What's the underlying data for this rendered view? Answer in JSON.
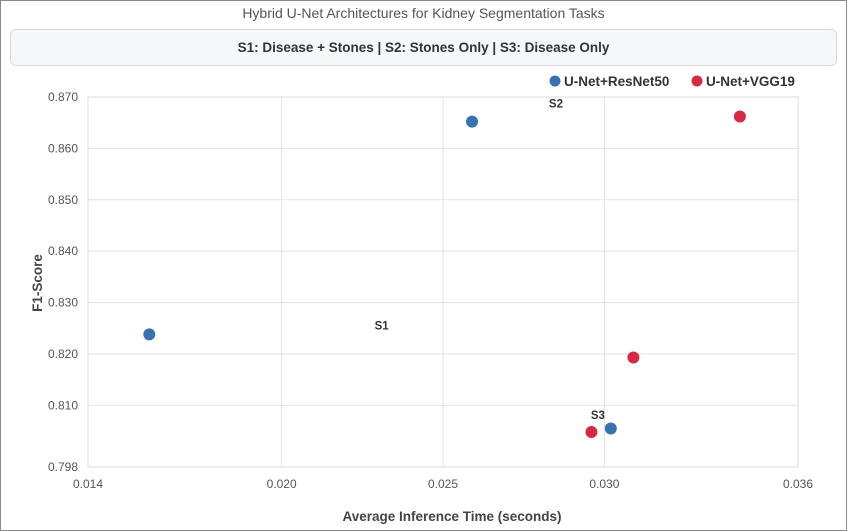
{
  "chart_data": {
    "type": "scatter",
    "title": "Hybrid U-Net Architectures for Kidney Segmentation Tasks",
    "subtitle": "S1: Disease + Stones | S2: Stones Only | S3: Disease Only",
    "xlabel": "Average Inference Time (seconds)",
    "ylabel": "F1-Score",
    "xlim": [
      0.014,
      0.036
    ],
    "ylim": [
      0.798,
      0.87
    ],
    "x_ticks": [
      "0.014",
      "0.020",
      "0.025",
      "0.030",
      "0.036"
    ],
    "x_tick_values": [
      0.014,
      0.02,
      0.025,
      0.03,
      0.036
    ],
    "y_ticks": [
      "0.870",
      "0.860",
      "0.850",
      "0.840",
      "0.830",
      "0.820",
      "0.810",
      "0.798"
    ],
    "y_tick_values": [
      0.87,
      0.86,
      0.85,
      0.84,
      0.83,
      0.82,
      0.81,
      0.798
    ],
    "grid": true,
    "legend_position": "top-right",
    "series": [
      {
        "name": "U-Net+ResNet50",
        "color": "#3a72b0",
        "points": [
          {
            "x": 0.0159,
            "y": 0.8238
          },
          {
            "x": 0.0259,
            "y": 0.8652
          },
          {
            "x": 0.0302,
            "y": 0.8055
          }
        ]
      },
      {
        "name": "U-Net+VGG19",
        "color": "#d42a44",
        "points": [
          {
            "x": 0.0296,
            "y": 0.8048
          },
          {
            "x": 0.0309,
            "y": 0.8193
          },
          {
            "x": 0.0342,
            "y": 0.8662
          }
        ]
      }
    ],
    "annotations": [
      {
        "text": "S1",
        "x": 0.0231,
        "y": 0.8248
      },
      {
        "text": "S2",
        "x": 0.0285,
        "y": 0.868
      },
      {
        "text": "S3",
        "x": 0.0298,
        "y": 0.8073
      }
    ]
  }
}
